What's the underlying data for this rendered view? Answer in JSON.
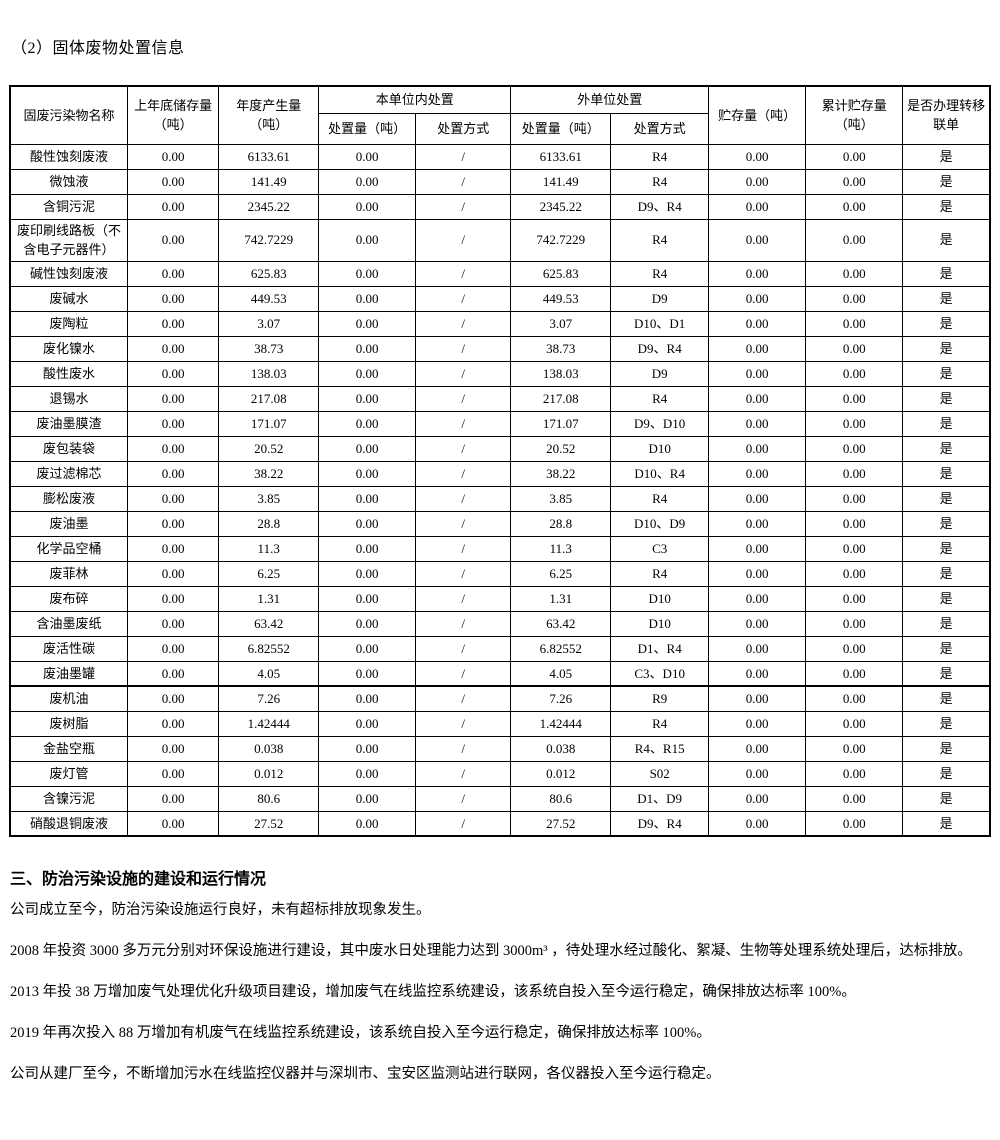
{
  "page": {
    "title": "（2）固体废物处置信息"
  },
  "table": {
    "header": {
      "name": "固废污染物名称",
      "last_year_storage": "上年底储存量（吨）",
      "annual_output": "年度产生量（吨）",
      "onsite_group": "本单位内处置",
      "offsite_group": "外单位处置",
      "disposal_qty": "处置量（吨）",
      "disposal_method": "处置方式",
      "storage": "贮存量（吨）",
      "cumulative_storage": "累计贮存量（吨）",
      "manifest": "是否办理转移联单"
    },
    "rows": [
      [
        "酸性蚀刻废液",
        "0.00",
        "6133.61",
        "0.00",
        "/",
        "6133.61",
        "R4",
        "0.00",
        "0.00",
        "是"
      ],
      [
        "微蚀液",
        "0.00",
        "141.49",
        "0.00",
        "/",
        "141.49",
        "R4",
        "0.00",
        "0.00",
        "是"
      ],
      [
        "含铜污泥",
        "0.00",
        "2345.22",
        "0.00",
        "/",
        "2345.22",
        "D9、R4",
        "0.00",
        "0.00",
        "是"
      ],
      [
        "废印刷线路板（不含电子元器件）",
        "0.00",
        "742.7229",
        "0.00",
        "/",
        "742.7229",
        "R4",
        "0.00",
        "0.00",
        "是"
      ],
      [
        "碱性蚀刻废液",
        "0.00",
        "625.83",
        "0.00",
        "/",
        "625.83",
        "R4",
        "0.00",
        "0.00",
        "是"
      ],
      [
        "废碱水",
        "0.00",
        "449.53",
        "0.00",
        "/",
        "449.53",
        "D9",
        "0.00",
        "0.00",
        "是"
      ],
      [
        "废陶粒",
        "0.00",
        "3.07",
        "0.00",
        "/",
        "3.07",
        "D10、D1",
        "0.00",
        "0.00",
        "是"
      ],
      [
        "废化镍水",
        "0.00",
        "38.73",
        "0.00",
        "/",
        "38.73",
        "D9、R4",
        "0.00",
        "0.00",
        "是"
      ],
      [
        "酸性废水",
        "0.00",
        "138.03",
        "0.00",
        "/",
        "138.03",
        "D9",
        "0.00",
        "0.00",
        "是"
      ],
      [
        "退锡水",
        "0.00",
        "217.08",
        "0.00",
        "/",
        "217.08",
        "R4",
        "0.00",
        "0.00",
        "是"
      ],
      [
        "废油墨膜渣",
        "0.00",
        "171.07",
        "0.00",
        "/",
        "171.07",
        "D9、D10",
        "0.00",
        "0.00",
        "是"
      ],
      [
        "废包装袋",
        "0.00",
        "20.52",
        "0.00",
        "/",
        "20.52",
        "D10",
        "0.00",
        "0.00",
        "是"
      ],
      [
        "废过滤棉芯",
        "0.00",
        "38.22",
        "0.00",
        "/",
        "38.22",
        "D10、R4",
        "0.00",
        "0.00",
        "是"
      ],
      [
        "膨松废液",
        "0.00",
        "3.85",
        "0.00",
        "/",
        "3.85",
        "R4",
        "0.00",
        "0.00",
        "是"
      ],
      [
        "废油墨",
        "0.00",
        "28.8",
        "0.00",
        "/",
        "28.8",
        "D10、D9",
        "0.00",
        "0.00",
        "是"
      ],
      [
        "化学品空桶",
        "0.00",
        "11.3",
        "0.00",
        "/",
        "11.3",
        "C3",
        "0.00",
        "0.00",
        "是"
      ],
      [
        "废菲林",
        "0.00",
        "6.25",
        "0.00",
        "/",
        "6.25",
        "R4",
        "0.00",
        "0.00",
        "是"
      ],
      [
        "废布碎",
        "0.00",
        "1.31",
        "0.00",
        "/",
        "1.31",
        "D10",
        "0.00",
        "0.00",
        "是"
      ],
      [
        "含油墨废纸",
        "0.00",
        "63.42",
        "0.00",
        "/",
        "63.42",
        "D10",
        "0.00",
        "0.00",
        "是"
      ],
      [
        "废活性碳",
        "0.00",
        "6.82552",
        "0.00",
        "/",
        "6.82552",
        "D1、R4",
        "0.00",
        "0.00",
        "是"
      ],
      [
        "废油墨罐",
        "0.00",
        "4.05",
        "0.00",
        "/",
        "4.05",
        "C3、D10",
        "0.00",
        "0.00",
        "是"
      ],
      [
        "废机油",
        "0.00",
        "7.26",
        "0.00",
        "/",
        "7.26",
        "R9",
        "0.00",
        "0.00",
        "是"
      ],
      [
        "废树脂",
        "0.00",
        "1.42444",
        "0.00",
        "/",
        "1.42444",
        "R4",
        "0.00",
        "0.00",
        "是"
      ],
      [
        "金盐空瓶",
        "0.00",
        "0.038",
        "0.00",
        "/",
        "0.038",
        "R4、R15",
        "0.00",
        "0.00",
        "是"
      ],
      [
        "废灯管",
        "0.00",
        "0.012",
        "0.00",
        "/",
        "0.012",
        "S02",
        "0.00",
        "0.00",
        "是"
      ],
      [
        "含镍污泥",
        "0.00",
        "80.6",
        "0.00",
        "/",
        "80.6",
        "D1、D9",
        "0.00",
        "0.00",
        "是"
      ],
      [
        "硝酸退铜废液",
        "0.00",
        "27.52",
        "0.00",
        "/",
        "27.52",
        "D9、R4",
        "0.00",
        "0.00",
        "是"
      ]
    ]
  },
  "section": {
    "heading": "三、防治污染设施的建设和运行情况",
    "paragraphs": [
      "公司成立至今，防治污染设施运行良好，未有超标排放现象发生。",
      "2008 年投资 3000 多万元分别对环保设施进行建设，其中废水日处理能力达到 3000m³ ，待处理水经过酸化、絮凝、生物等处理系统处理后，达标排放。",
      "2013 年投 38 万增加废气处理优化升级项目建设，增加废气在线监控系统建设，该系统自投入至今运行稳定，确保排放达标率 100%。",
      "2019 年再次投入 88 万增加有机废气在线监控系统建设，该系统自投入至今运行稳定，确保排放达标率 100%。",
      "公司从建厂至今，不断增加污水在线监控仪器并与深圳市、宝安区监测站进行联网，各仪器投入至今运行稳定。"
    ]
  }
}
